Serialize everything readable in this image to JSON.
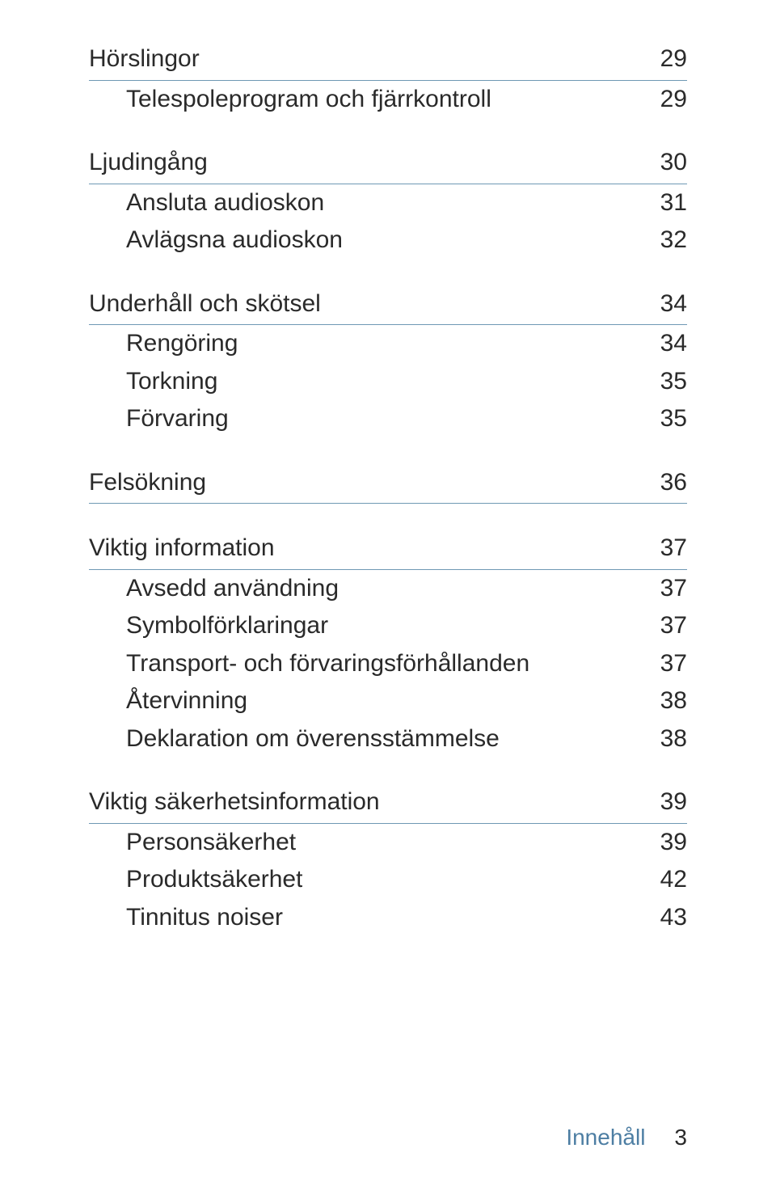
{
  "toc": {
    "groups": [
      {
        "section": {
          "title": "Hörslingor",
          "page": "29"
        },
        "items": [
          {
            "title": "Telespoleprogram och fjärrkontroll",
            "page": "29"
          }
        ]
      },
      {
        "section": {
          "title": "Ljudingång",
          "page": "30"
        },
        "items": [
          {
            "title": "Ansluta audioskon",
            "page": "31"
          },
          {
            "title": "Avlägsna audioskon",
            "page": "32"
          }
        ]
      },
      {
        "section": {
          "title": "Underhåll och skötsel",
          "page": "34"
        },
        "items": [
          {
            "title": "Rengöring",
            "page": "34"
          },
          {
            "title": "Torkning",
            "page": "35"
          },
          {
            "title": "Förvaring",
            "page": "35"
          }
        ]
      },
      {
        "section": {
          "title": "Felsökning",
          "page": "36"
        },
        "items": []
      },
      {
        "section": {
          "title": "Viktig information",
          "page": "37"
        },
        "items": [
          {
            "title": "Avsedd användning",
            "page": "37"
          },
          {
            "title": "Symbolförklaringar",
            "page": "37"
          },
          {
            "title": "Transport- och förvaringsförhållanden",
            "page": "37"
          },
          {
            "title": "Återvinning",
            "page": "38"
          },
          {
            "title": "Deklaration om överensstämmelse",
            "page": "38"
          }
        ]
      },
      {
        "section": {
          "title": "Viktig säkerhetsinformation",
          "page": "39"
        },
        "items": [
          {
            "title": "Personsäkerhet",
            "page": "39"
          },
          {
            "title": "Produktsäkerhet",
            "page": "42"
          },
          {
            "title": "Tinnitus noiser",
            "page": "43"
          }
        ]
      }
    ]
  },
  "footer": {
    "label": "Innehåll",
    "page": "3"
  },
  "colors": {
    "rule": "#6f99b4",
    "footer_label": "#4d7ea3",
    "text": "#2a2a2a",
    "background": "#ffffff"
  }
}
